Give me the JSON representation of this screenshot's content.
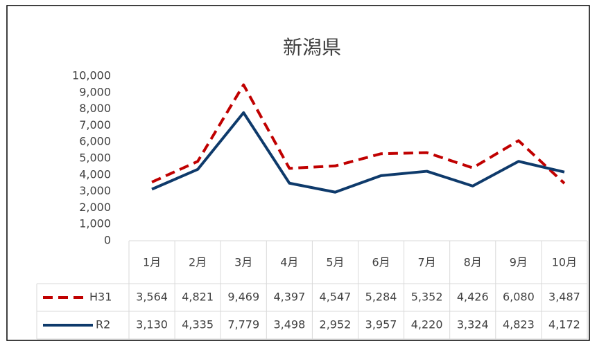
{
  "chart_data": {
    "type": "line",
    "title": "新潟県",
    "categories": [
      "1月",
      "2月",
      "3月",
      "4月",
      "5月",
      "6月",
      "7月",
      "8月",
      "9月",
      "10月"
    ],
    "series": [
      {
        "name": "H31",
        "color": "#c00000",
        "line_style": "dashed",
        "values": [
          3564,
          4821,
          9469,
          4397,
          4547,
          5284,
          5352,
          4426,
          6080,
          3487
        ],
        "value_labels": [
          "3,564",
          "4,821",
          "9,469",
          "4,397",
          "4,547",
          "5,284",
          "5,352",
          "4,426",
          "6,080",
          "3,487"
        ]
      },
      {
        "name": "R2",
        "color": "#0e3a6b",
        "line_style": "solid",
        "values": [
          3130,
          4335,
          7779,
          3498,
          2952,
          3957,
          4220,
          3324,
          4823,
          4172
        ],
        "value_labels": [
          "3,130",
          "4,335",
          "7,779",
          "3,498",
          "2,952",
          "3,957",
          "4,220",
          "3,324",
          "4,823",
          "4,172"
        ]
      }
    ],
    "ylim": [
      0,
      10000
    ],
    "yticks": [
      0,
      {
        "value": 1000,
        "label": "1,000"
      },
      {
        "value": 2000,
        "label": "2,000"
      },
      {
        "value": 3000,
        "label": "3,000"
      },
      {
        "value": 4000,
        "label": "4,000"
      },
      {
        "value": 5000,
        "label": "5,000"
      },
      {
        "value": 6000,
        "label": "6,000"
      },
      {
        "value": 7000,
        "label": "7,000"
      },
      {
        "value": 8000,
        "label": "8,000"
      },
      {
        "value": 9000,
        "label": "9,000"
      },
      {
        "value": 10000,
        "label": "10,000"
      }
    ],
    "grid": false,
    "data_table": true
  }
}
